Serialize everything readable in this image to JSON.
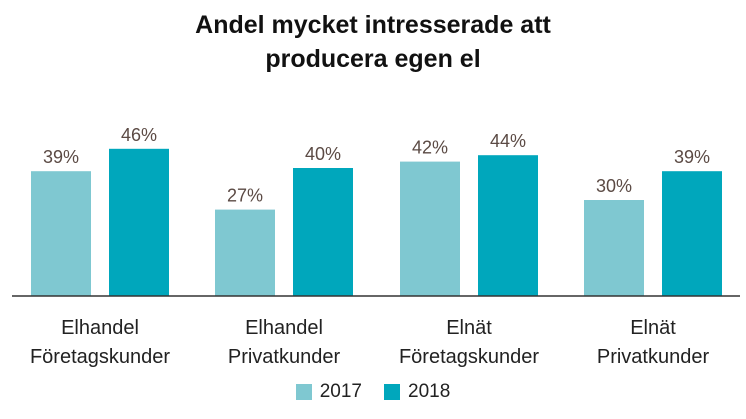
{
  "chart_data": {
    "type": "bar",
    "title_lines": [
      "Andel mycket intresserade att",
      "producera egen el"
    ],
    "categories": [
      [
        "Elhandel",
        "Företagskunder"
      ],
      [
        "Elhandel",
        "Privatkunder"
      ],
      [
        "Elnät",
        "Företagskunder"
      ],
      [
        "Elnät",
        "Privatkunder"
      ]
    ],
    "series": [
      {
        "name": "2017",
        "color": "#7fc8d1",
        "values": [
          39,
          27,
          42,
          30
        ],
        "labels": [
          "39%",
          "27%",
          "42%",
          "30%"
        ]
      },
      {
        "name": "2018",
        "color": "#00a7bc",
        "values": [
          46,
          40,
          44,
          39
        ],
        "labels": [
          "46%",
          "40%",
          "44%",
          "39%"
        ]
      }
    ],
    "unit": "%",
    "ylim": [
      0,
      50
    ],
    "gridlines": false,
    "legend_position": "bottom",
    "label_color": "#5b4a44",
    "axis_color": "#333333"
  }
}
